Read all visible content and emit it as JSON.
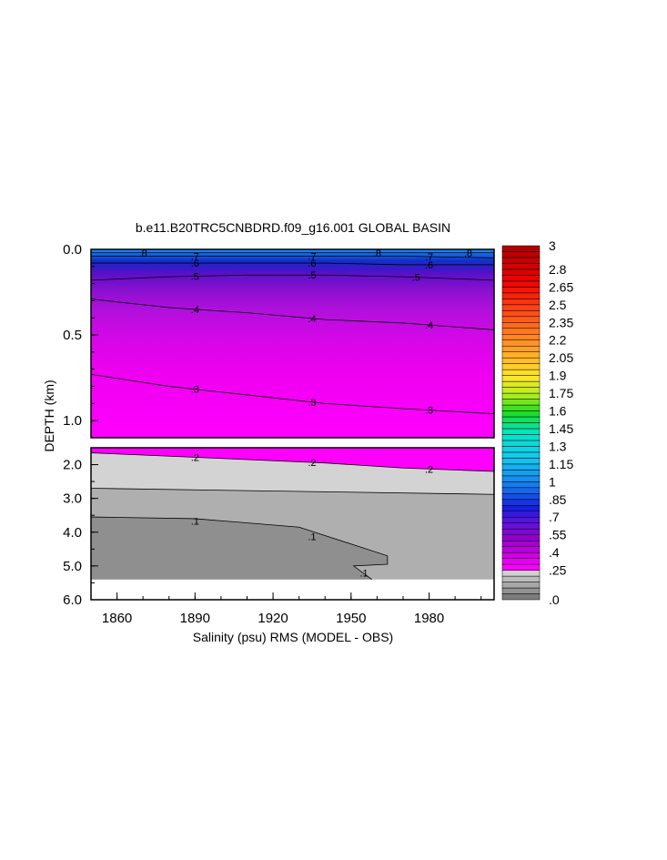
{
  "chart_data": {
    "type": "heatmap",
    "title": "b.e11.B20TRC5CNBDRD.f09_g16.001 GLOBAL BASIN",
    "xlabel": "Salinity (psu) RMS (MODEL - OBS)",
    "ylabel": "DEPTH (km)",
    "x_ticks": [
      "1860",
      "1890",
      "1920",
      "1950",
      "1980"
    ],
    "x_tick_values": [
      1860,
      1890,
      1920,
      1950,
      1980
    ],
    "xlim": [
      1850,
      2005
    ],
    "upper_panel": {
      "ylim": [
        0.0,
        1.1
      ],
      "y_ticks": [
        "0.0",
        "0.5",
        "1.0"
      ],
      "y_tick_values": [
        0.0,
        0.5,
        1.0
      ]
    },
    "lower_panel": {
      "ylim": [
        1.5,
        6.0
      ],
      "y_ticks": [
        "2.0",
        "3.0",
        "4.0",
        "5.0",
        "6.0"
      ],
      "y_tick_values": [
        2.0,
        3.0,
        4.0,
        5.0,
        6.0
      ]
    },
    "colorbar": {
      "min": 0.0,
      "max": 3.0,
      "step": 0.05,
      "labels": [
        "3",
        "2.8",
        "2.65",
        "2.5",
        "2.35",
        "2.2",
        "2.05",
        "1.9",
        "1.75",
        "1.6",
        "1.45",
        "1.3",
        "1.15",
        "1",
        ".85",
        ".7",
        ".55",
        ".4",
        ".25",
        ".0"
      ],
      "label_values": [
        3.0,
        2.8,
        2.65,
        2.5,
        2.35,
        2.2,
        2.05,
        1.9,
        1.75,
        1.6,
        1.45,
        1.3,
        1.15,
        1.0,
        0.85,
        0.7,
        0.55,
        0.4,
        0.25,
        0.0
      ]
    },
    "contours": [
      {
        "label": ".8",
        "level": 0.8,
        "panel": "upper",
        "label_years": [
          1870,
          1960,
          1995
        ],
        "depths": [
          0.02,
          0.02,
          0.02,
          0.02,
          0.02,
          0.02
        ]
      },
      {
        "label": ".7",
        "level": 0.7,
        "panel": "upper",
        "label_years": [
          1890,
          1935,
          1980
        ],
        "depths": [
          0.04,
          0.04,
          0.04,
          0.04,
          0.04,
          0.05
        ]
      },
      {
        "label": ".6",
        "level": 0.6,
        "panel": "upper",
        "label_years": [
          1890,
          1935,
          1980
        ],
        "depths": [
          0.08,
          0.08,
          0.08,
          0.08,
          0.09,
          0.09
        ]
      },
      {
        "label": ".5",
        "level": 0.5,
        "panel": "upper",
        "label_years": [
          1890,
          1935,
          1975
        ],
        "depths": [
          0.18,
          0.16,
          0.15,
          0.15,
          0.16,
          0.18
        ]
      },
      {
        "label": ".4",
        "level": 0.4,
        "panel": "upper",
        "label_years": [
          1890,
          1935,
          1980
        ],
        "depths": [
          0.29,
          0.34,
          0.37,
          0.41,
          0.43,
          0.47
        ]
      },
      {
        "label": ".3",
        "level": 0.3,
        "panel": "upper",
        "label_years": [
          1890,
          1935,
          1980
        ],
        "depths": [
          0.73,
          0.8,
          0.85,
          0.9,
          0.93,
          0.96
        ]
      },
      {
        "label": ".2",
        "level": 0.2,
        "panel": "lower",
        "label_years": [
          1890,
          1935,
          1980
        ],
        "depths": [
          1.65,
          1.75,
          1.85,
          1.95,
          2.1,
          2.2
        ]
      },
      {
        "label": ".1",
        "level": 0.1,
        "panel": "lower",
        "label_years": [
          1890,
          1935,
          1955
        ],
        "depths": [
          3.55,
          3.6,
          3.8,
          4.2,
          4.9,
          5.4
        ]
      }
    ],
    "sample_years": [
      1850,
      1880,
      1910,
      1940,
      1970,
      2005
    ]
  }
}
